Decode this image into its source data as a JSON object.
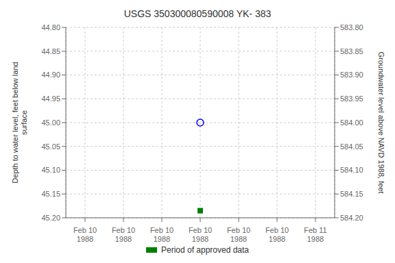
{
  "chart_data": {
    "type": "scatter",
    "title": "USGS 350300080590008 YK- 383",
    "y_label": "Depth to water level, feet below land\nsurface",
    "y2_label": "Groundwater level above NAVD 1988, feet",
    "categories": [
      "Feb 10\n1988",
      "Feb 10\n1988",
      "Feb 10\n1988",
      "Feb 10\n1988",
      "Feb 10\n1988",
      "Feb 10\n1988",
      "Feb 11\n1988"
    ],
    "series": [
      {
        "color": "#0000ff",
        "marker": "circle",
        "values": [
          null,
          null,
          null,
          45.0,
          null,
          null,
          null
        ]
      },
      {
        "name": "Period of approved data",
        "color": "#008000",
        "marker": "square",
        "values": [
          null,
          null,
          null,
          45.185,
          null,
          null,
          null
        ]
      }
    ],
    "ylim": [
      45.2,
      44.8
    ],
    "yticks": [
      {
        "value": 44.8,
        "label": "44.80"
      },
      {
        "value": 44.85,
        "label": "44.85"
      },
      {
        "value": 44.9,
        "label": "44.90"
      },
      {
        "value": 44.95,
        "label": "44.95"
      },
      {
        "value": 45.0,
        "label": "45.00"
      },
      {
        "value": 45.05,
        "label": "45.05"
      },
      {
        "value": 45.1,
        "label": "45.10"
      },
      {
        "value": 45.15,
        "label": "45.15"
      },
      {
        "value": 45.2,
        "label": "45.20"
      }
    ],
    "y2lim": [
      584.2,
      583.8
    ],
    "y2ticks": [
      {
        "value": 584.2,
        "label": "584.20"
      },
      {
        "value": 584.15,
        "label": "584.15"
      },
      {
        "value": 584.1,
        "label": "584.10"
      },
      {
        "value": 584.05,
        "label": "584.05"
      },
      {
        "value": 584.0,
        "label": "584.00"
      },
      {
        "value": 583.95,
        "label": "583.95"
      },
      {
        "value": 583.9,
        "label": "583.90"
      },
      {
        "value": 583.85,
        "label": "583.85"
      },
      {
        "value": 583.8,
        "label": "583.80"
      }
    ],
    "grid": true,
    "legend": "bottom"
  }
}
